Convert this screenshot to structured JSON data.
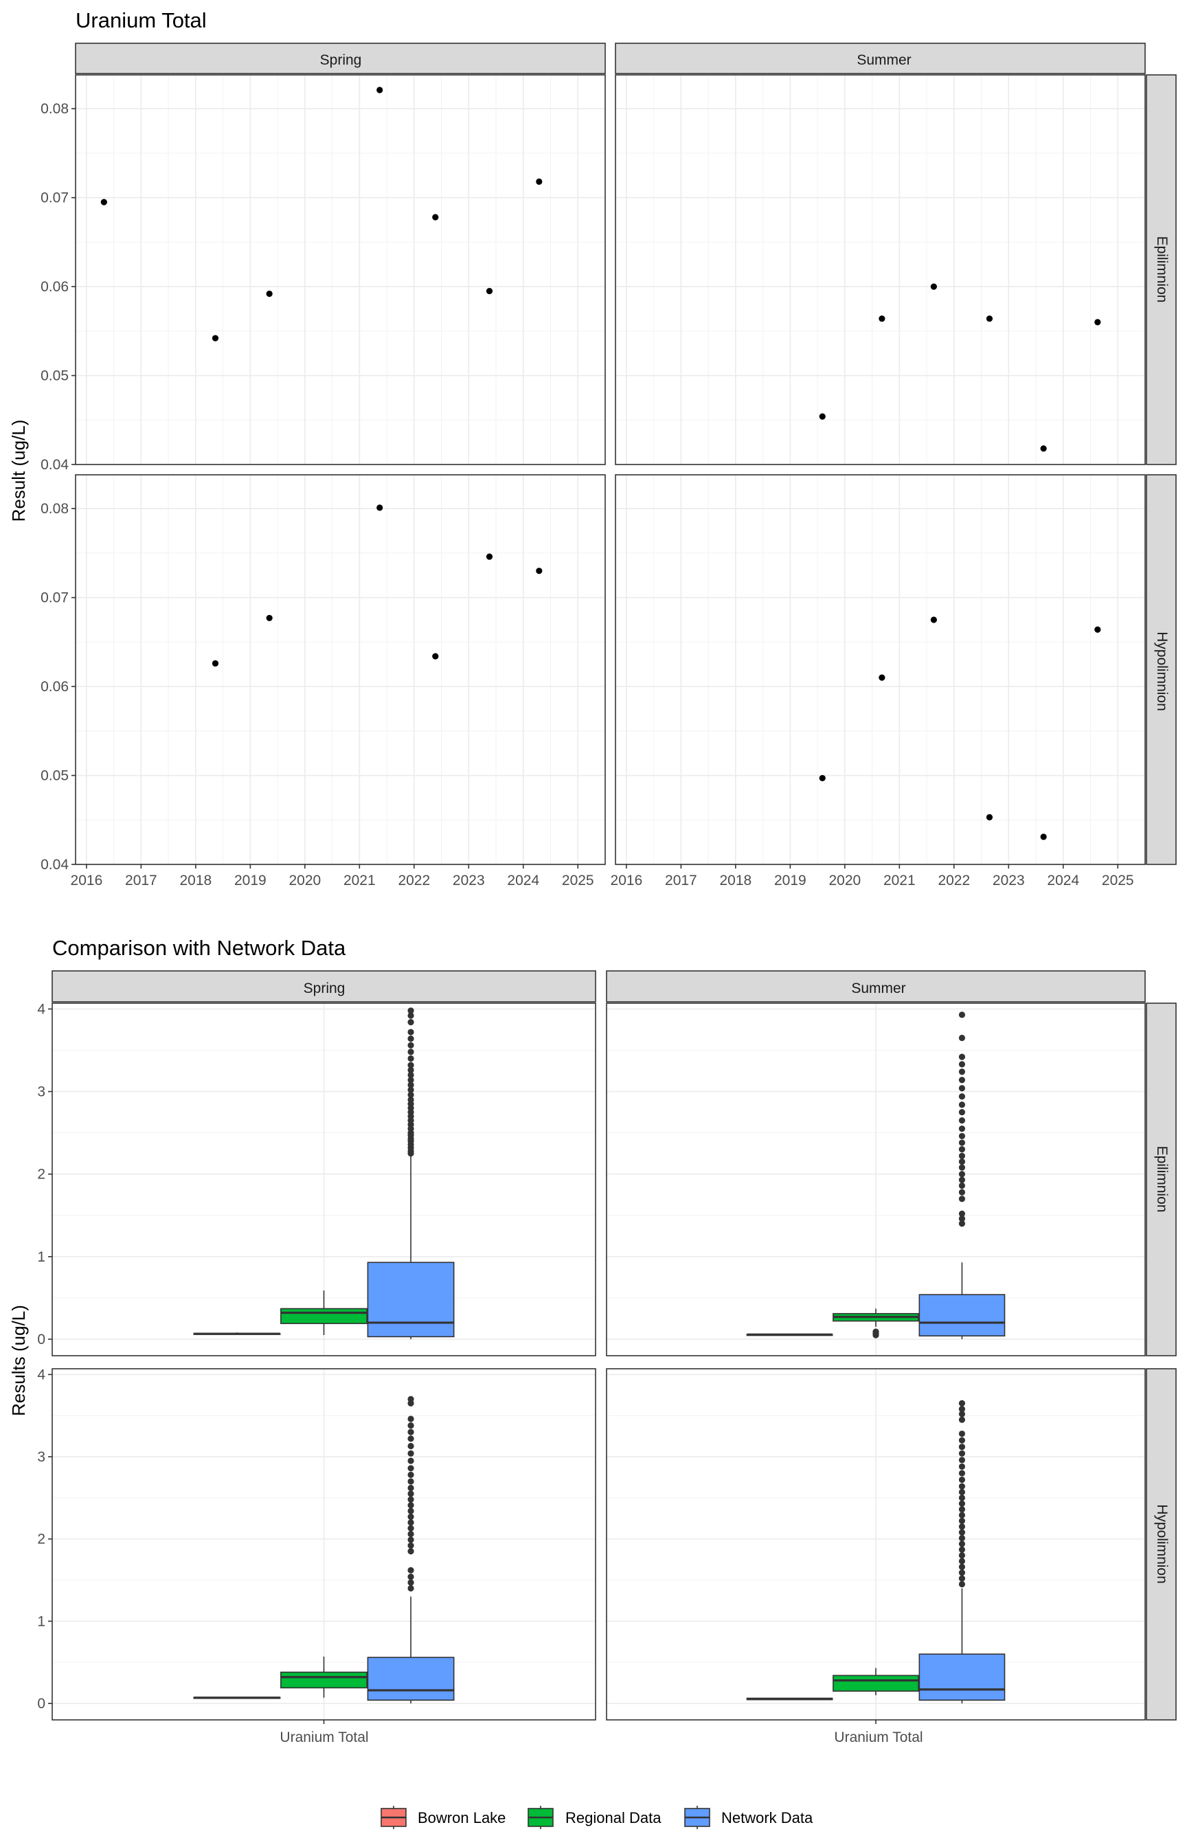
{
  "colors": {
    "bowron": "#F8766D",
    "regional": "#00BA38",
    "network": "#619CFF",
    "point": "#000000",
    "outlier": "#333333",
    "strip": "#D9D9D9"
  },
  "chart_data": [
    {
      "type": "scatter",
      "title": "Uranium Total",
      "ylabel": "Result (ug/L)",
      "xlabel": "",
      "xlim": [
        2015.8,
        2025.5
      ],
      "ylim": [
        0.04,
        0.0838
      ],
      "x_ticks": [
        2016,
        2017,
        2018,
        2019,
        2020,
        2021,
        2022,
        2023,
        2024,
        2025
      ],
      "x_tick_labels": [
        "2016",
        "2017",
        "2018",
        "2019",
        "2020",
        "2021",
        "2022",
        "2023",
        "2024",
        "2025"
      ],
      "y_ticks_top": [
        0.04,
        0.05,
        0.06,
        0.07,
        0.08
      ],
      "y_tick_labels_top": [
        "0.04",
        "0.05",
        "0.06",
        "0.07",
        "0.08"
      ],
      "y_ticks_bottom": [
        0.04,
        0.05,
        0.06,
        0.07,
        0.08
      ],
      "y_tick_labels_bottom": [
        "0.04",
        "0.05",
        "0.06",
        "0.07",
        "0.08"
      ],
      "grid": true,
      "column_labels": [
        "Spring",
        "Summer"
      ],
      "row_labels": [
        "Epilimnion",
        "Hypolimnion"
      ],
      "panels": [
        {
          "season": "Spring",
          "layer": "Epilimnion",
          "points": [
            {
              "x": 2016.32,
              "y": 0.0695
            },
            {
              "x": 2018.36,
              "y": 0.0542
            },
            {
              "x": 2019.35,
              "y": 0.0592
            },
            {
              "x": 2021.37,
              "y": 0.0821
            },
            {
              "x": 2022.39,
              "y": 0.0678
            },
            {
              "x": 2023.38,
              "y": 0.0595
            },
            {
              "x": 2024.29,
              "y": 0.0718
            }
          ]
        },
        {
          "season": "Summer",
          "layer": "Epilimnion",
          "points": [
            {
              "x": 2019.59,
              "y": 0.0454
            },
            {
              "x": 2020.68,
              "y": 0.0564
            },
            {
              "x": 2021.63,
              "y": 0.06
            },
            {
              "x": 2022.65,
              "y": 0.0564
            },
            {
              "x": 2023.64,
              "y": 0.0418
            },
            {
              "x": 2024.63,
              "y": 0.056
            }
          ]
        },
        {
          "season": "Spring",
          "layer": "Hypolimnion",
          "points": [
            {
              "x": 2018.36,
              "y": 0.0626
            },
            {
              "x": 2019.35,
              "y": 0.0677
            },
            {
              "x": 2021.37,
              "y": 0.0801
            },
            {
              "x": 2022.39,
              "y": 0.0634
            },
            {
              "x": 2023.38,
              "y": 0.0746
            },
            {
              "x": 2024.29,
              "y": 0.073
            }
          ]
        },
        {
          "season": "Summer",
          "layer": "Hypolimnion",
          "points": [
            {
              "x": 2019.59,
              "y": 0.0497
            },
            {
              "x": 2020.68,
              "y": 0.061
            },
            {
              "x": 2021.63,
              "y": 0.0675
            },
            {
              "x": 2022.65,
              "y": 0.0453
            },
            {
              "x": 2023.64,
              "y": 0.0431
            },
            {
              "x": 2024.63,
              "y": 0.0664
            }
          ]
        }
      ]
    },
    {
      "type": "box",
      "title": "Comparison with Network Data",
      "ylabel": "Results (ug/L)",
      "category": "Uranium Total",
      "ylim": [
        -0.2,
        4.07
      ],
      "y_ticks": [
        0,
        1,
        2,
        3,
        4
      ],
      "y_tick_labels": [
        "0",
        "1",
        "2",
        "3",
        "4"
      ],
      "grid": true,
      "legend_position": "bottom",
      "series_names": [
        "Bowron Lake",
        "Regional Data",
        "Network Data"
      ],
      "column_labels": [
        "Spring",
        "Summer"
      ],
      "row_labels": [
        "Epilimnion",
        "Hypolimnion"
      ],
      "panels": [
        {
          "season": "Spring",
          "layer": "Epilimnion",
          "boxes": [
            {
              "series": "Bowron Lake",
              "min": 0.054,
              "q1": 0.059,
              "median": 0.066,
              "q3": 0.07,
              "max": 0.082,
              "outliers": []
            },
            {
              "series": "Regional Data",
              "min": 0.05,
              "q1": 0.19,
              "median": 0.32,
              "q3": 0.37,
              "max": 0.59,
              "outliers": []
            },
            {
              "series": "Network Data",
              "min": 0.0,
              "q1": 0.03,
              "median": 0.2,
              "q3": 0.93,
              "max": 2.25,
              "outliers": [
                2.25,
                2.28,
                2.32,
                2.36,
                2.4,
                2.43,
                2.47,
                2.5,
                2.55,
                2.6,
                2.65,
                2.7,
                2.75,
                2.8,
                2.85,
                2.9,
                2.96,
                3.02,
                3.08,
                3.14,
                3.2,
                3.26,
                3.32,
                3.4,
                3.48,
                3.56,
                3.64,
                3.72,
                3.84,
                3.92,
                3.98
              ]
            }
          ]
        },
        {
          "season": "Summer",
          "layer": "Epilimnion",
          "boxes": [
            {
              "series": "Bowron Lake",
              "min": 0.042,
              "q1": 0.048,
              "median": 0.056,
              "q3": 0.058,
              "max": 0.06,
              "outliers": []
            },
            {
              "series": "Regional Data",
              "min": 0.15,
              "q1": 0.22,
              "median": 0.27,
              "q3": 0.31,
              "max": 0.37,
              "outliers": [
                0.05,
                0.07,
                0.09
              ]
            },
            {
              "series": "Network Data",
              "min": 0.0,
              "q1": 0.04,
              "median": 0.2,
              "q3": 0.54,
              "max": 0.93,
              "outliers": [
                1.4,
                1.46,
                1.52,
                1.7,
                1.78,
                1.86,
                1.93,
                2.0,
                2.08,
                2.15,
                2.22,
                2.3,
                2.38,
                2.46,
                2.55,
                2.65,
                2.75,
                2.84,
                2.94,
                3.04,
                3.14,
                3.24,
                3.33,
                3.42,
                3.65,
                3.93
              ]
            }
          ]
        },
        {
          "season": "Spring",
          "layer": "Hypolimnion",
          "boxes": [
            {
              "series": "Bowron Lake",
              "min": 0.063,
              "q1": 0.064,
              "median": 0.07,
              "q3": 0.074,
              "max": 0.08,
              "outliers": []
            },
            {
              "series": "Regional Data",
              "min": 0.07,
              "q1": 0.19,
              "median": 0.32,
              "q3": 0.38,
              "max": 0.57,
              "outliers": []
            },
            {
              "series": "Network Data",
              "min": 0.0,
              "q1": 0.04,
              "median": 0.16,
              "q3": 0.56,
              "max": 1.3,
              "outliers": [
                1.4,
                1.47,
                1.54,
                1.62,
                1.85,
                1.92,
                1.99,
                2.06,
                2.13,
                2.2,
                2.27,
                2.34,
                2.41,
                2.48,
                2.55,
                2.62,
                2.7,
                2.78,
                2.86,
                2.95,
                3.04,
                3.13,
                3.22,
                3.3,
                3.38,
                3.46,
                3.65,
                3.7
              ]
            }
          ]
        },
        {
          "season": "Summer",
          "layer": "Hypolimnion",
          "boxes": [
            {
              "series": "Bowron Lake",
              "min": 0.043,
              "q1": 0.046,
              "median": 0.055,
              "q3": 0.063,
              "max": 0.067,
              "outliers": []
            },
            {
              "series": "Regional Data",
              "min": 0.1,
              "q1": 0.15,
              "median": 0.28,
              "q3": 0.34,
              "max": 0.43,
              "outliers": []
            },
            {
              "series": "Network Data",
              "min": 0.0,
              "q1": 0.04,
              "median": 0.17,
              "q3": 0.6,
              "max": 1.4,
              "outliers": [
                1.45,
                1.52,
                1.59,
                1.66,
                1.73,
                1.8,
                1.87,
                1.94,
                2.01,
                2.08,
                2.15,
                2.22,
                2.29,
                2.36,
                2.43,
                2.5,
                2.57,
                2.64,
                2.72,
                2.8,
                2.88,
                2.96,
                3.04,
                3.12,
                3.2,
                3.28,
                3.45,
                3.52,
                3.58,
                3.65
              ]
            }
          ]
        }
      ]
    }
  ]
}
